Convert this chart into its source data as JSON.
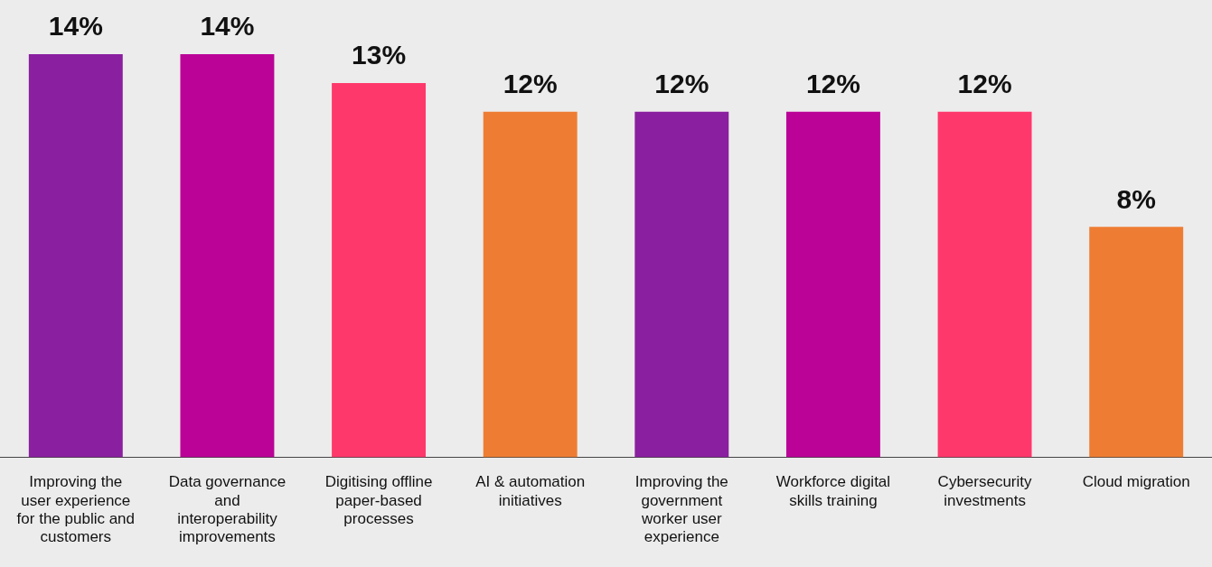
{
  "chart_data": {
    "type": "bar",
    "categories": [
      "Improving the user experience for the public and customers",
      "Data governance and interoperability improvements",
      "Digitising offline paper-based processes",
      "AI & automation initiatives",
      "Improving the government worker user experience",
      "Workforce digital skills training",
      "Cybersecurity investments",
      "Cloud migration"
    ],
    "values": [
      14,
      14,
      13,
      12,
      12,
      12,
      12,
      8
    ],
    "value_labels": [
      "14%",
      "14%",
      "13%",
      "12%",
      "12%",
      "12%",
      "12%",
      "8%"
    ],
    "colors": [
      "#8a1fa0",
      "#bb0497",
      "#ff386b",
      "#ee7d33",
      "#8a1fa0",
      "#bb0497",
      "#ff386b",
      "#ee7d33"
    ],
    "grid": false,
    "legend": false
  }
}
